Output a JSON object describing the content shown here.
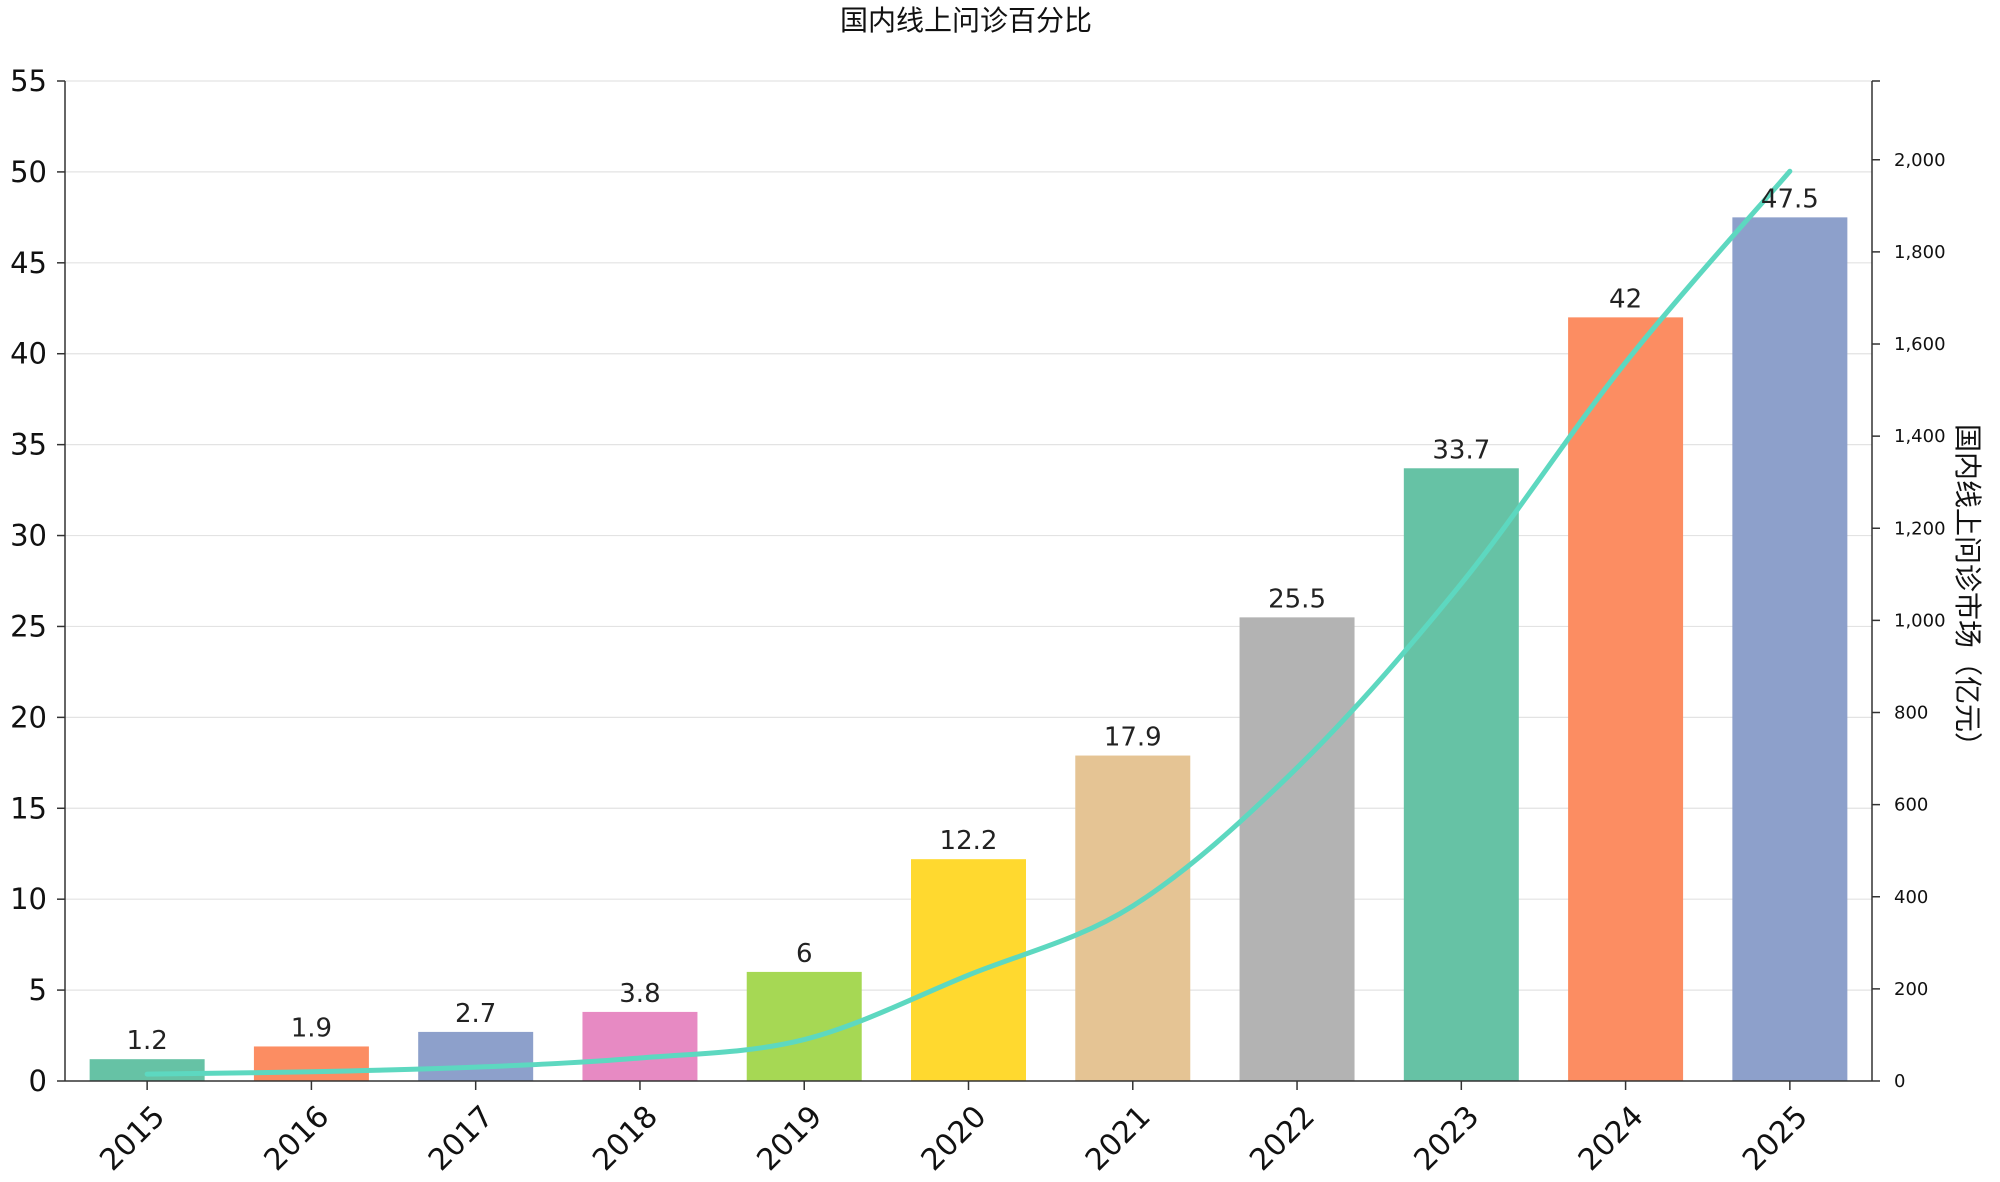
{
  "chart_data": {
    "type": "bar",
    "title": "国内线上问诊百分比",
    "categories": [
      "2015",
      "2016",
      "2017",
      "2018",
      "2019",
      "2020",
      "2021",
      "2022",
      "2023",
      "2024",
      "2025"
    ],
    "series": [
      {
        "name": "国内线上问诊百分比",
        "type": "bar",
        "axis": "left",
        "values": [
          1.2,
          1.9,
          2.7,
          3.8,
          6,
          12.2,
          17.9,
          25.5,
          33.7,
          42,
          47.5
        ],
        "labels": [
          "1.2",
          "1.9",
          "2.7",
          "3.8",
          "6",
          "12.2",
          "17.9",
          "25.5",
          "33.7",
          "42",
          "47.5"
        ],
        "colors": [
          "#66c2a5",
          "#fc8d62",
          "#8da0cb",
          "#e78ac3",
          "#a6d854",
          "#ffd92f",
          "#e5c494",
          "#b3b3b3",
          "#66c2a5",
          "#fc8d62",
          "#8da0cb"
        ]
      },
      {
        "name": "国内线上问诊市场（亿元）",
        "type": "line",
        "axis": "right",
        "values": [
          15,
          20,
          30,
          50,
          90,
          230,
          380,
          680,
          1080,
          1560,
          1975
        ],
        "color": "#5dd8c0"
      }
    ],
    "y_left": {
      "min": 0,
      "max": 55,
      "ticks": [
        "0",
        "5",
        "10",
        "15",
        "20",
        "25",
        "30",
        "35",
        "40",
        "45",
        "50",
        "55"
      ]
    },
    "y_right": {
      "label": "国内线上问诊市场（亿元）",
      "min": 0,
      "max": 2171,
      "ticks": [
        "0",
        "200",
        "400",
        "600",
        "800",
        "1,000",
        "1,200",
        "1,400",
        "1,600",
        "1,800",
        "2,000"
      ]
    },
    "grid": true,
    "legend": "none"
  }
}
